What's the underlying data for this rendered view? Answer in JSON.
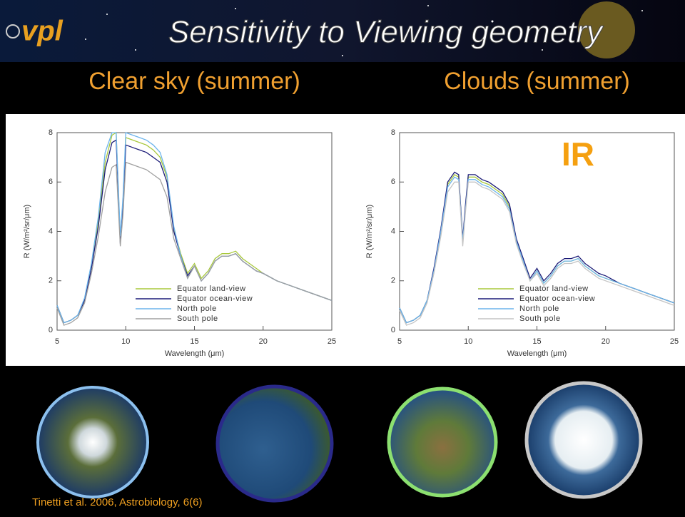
{
  "slide": {
    "logo": "vpl",
    "title": "Sensitivity to Viewing geometry",
    "citation": "Tinetti et al. 2006, Astrobiology, 6(6)"
  },
  "chart_data": [
    {
      "type": "line",
      "title": "Clear sky (summer)",
      "xlabel": "Wavelength (μm)",
      "ylabel": "R (W/m²/sr/μm)",
      "xlim": [
        5,
        25
      ],
      "ylim": [
        0,
        8
      ],
      "xticks": [
        5,
        10,
        15,
        20,
        25
      ],
      "yticks": [
        0,
        2,
        4,
        6,
        8
      ],
      "x": [
        5,
        5.5,
        6,
        6.5,
        7,
        7.5,
        8,
        8.5,
        9,
        9.3,
        9.6,
        9.8,
        10,
        10.5,
        11,
        11.5,
        12,
        12.5,
        13,
        13.5,
        14,
        14.5,
        15,
        15.5,
        16,
        16.5,
        17,
        17.5,
        18,
        18.5,
        19,
        19.5,
        20,
        21,
        22,
        23,
        24,
        25
      ],
      "series": [
        {
          "name": "Equator land-view",
          "color": "#a8c83c",
          "values": [
            1.0,
            0.3,
            0.4,
            0.6,
            1.2,
            2.6,
            4.4,
            6.8,
            7.9,
            8.0,
            3.6,
            5.2,
            7.8,
            7.7,
            7.6,
            7.5,
            7.3,
            7.0,
            6.2,
            4.1,
            3.1,
            2.3,
            2.7,
            2.1,
            2.4,
            2.9,
            3.1,
            3.1,
            3.2,
            2.9,
            2.7,
            2.5,
            2.3,
            2.0,
            1.8,
            1.6,
            1.4,
            1.2
          ]
        },
        {
          "name": "Equator ocean-view",
          "color": "#1c1c78",
          "values": [
            1.0,
            0.3,
            0.4,
            0.6,
            1.2,
            2.5,
            4.2,
            6.5,
            7.6,
            7.7,
            3.5,
            5.0,
            7.5,
            7.4,
            7.3,
            7.2,
            7.0,
            6.8,
            6.0,
            4.0,
            3.0,
            2.2,
            2.6,
            2.0,
            2.3,
            2.8,
            3.0,
            3.0,
            3.1,
            2.8,
            2.6,
            2.4,
            2.3,
            2.0,
            1.8,
            1.6,
            1.4,
            1.2
          ]
        },
        {
          "name": "North pole",
          "color": "#6cb4ec",
          "values": [
            1.0,
            0.3,
            0.4,
            0.6,
            1.3,
            2.7,
            4.6,
            7.2,
            8.0,
            8.0,
            3.8,
            5.4,
            8.0,
            7.9,
            7.8,
            7.7,
            7.5,
            7.2,
            6.3,
            4.2,
            3.0,
            2.1,
            2.6,
            2.0,
            2.3,
            2.8,
            3.0,
            3.0,
            3.1,
            2.8,
            2.6,
            2.4,
            2.3,
            2.0,
            1.8,
            1.6,
            1.4,
            1.2
          ]
        },
        {
          "name": "South pole",
          "color": "#a0a0a0",
          "values": [
            0.9,
            0.2,
            0.3,
            0.5,
            1.1,
            2.3,
            3.8,
            5.6,
            6.6,
            6.7,
            3.4,
            4.7,
            6.8,
            6.7,
            6.6,
            6.5,
            6.3,
            6.1,
            5.4,
            3.7,
            2.9,
            2.1,
            2.6,
            2.0,
            2.3,
            2.8,
            3.0,
            3.0,
            3.1,
            2.8,
            2.6,
            2.4,
            2.3,
            2.0,
            1.8,
            1.6,
            1.4,
            1.2
          ]
        }
      ]
    },
    {
      "type": "line",
      "title": "Clouds (summer)",
      "xlabel": "Wavelength (μm)",
      "ylabel": "R (W/m²/sr/μm)",
      "xlim": [
        5,
        25
      ],
      "ylim": [
        0,
        8
      ],
      "xticks": [
        5,
        10,
        15,
        20,
        25
      ],
      "yticks": [
        0,
        2,
        4,
        6,
        8
      ],
      "annotations": [
        {
          "text": "IR"
        }
      ],
      "x": [
        5,
        5.5,
        6,
        6.5,
        7,
        7.5,
        8,
        8.5,
        9,
        9.3,
        9.6,
        9.8,
        10,
        10.5,
        11,
        11.5,
        12,
        12.5,
        13,
        13.5,
        14,
        14.5,
        15,
        15.5,
        16,
        16.5,
        17,
        17.5,
        18,
        18.5,
        19,
        19.5,
        20,
        21,
        22,
        23,
        24,
        25
      ],
      "series": [
        {
          "name": "Equator land-view",
          "color": "#a8c83c",
          "values": [
            0.9,
            0.3,
            0.4,
            0.6,
            1.2,
            2.4,
            4.0,
            5.9,
            6.3,
            6.2,
            3.6,
            5.0,
            6.2,
            6.2,
            6.0,
            5.9,
            5.7,
            5.5,
            5.0,
            3.6,
            2.8,
            2.0,
            2.4,
            1.9,
            2.2,
            2.6,
            2.8,
            2.8,
            2.9,
            2.6,
            2.4,
            2.2,
            2.1,
            1.9,
            1.7,
            1.5,
            1.3,
            1.1
          ]
        },
        {
          "name": "Equator ocean-view",
          "color": "#1c1c78",
          "values": [
            0.9,
            0.3,
            0.4,
            0.6,
            1.2,
            2.5,
            4.1,
            6.0,
            6.4,
            6.3,
            3.7,
            5.1,
            6.3,
            6.3,
            6.1,
            6.0,
            5.8,
            5.6,
            5.1,
            3.7,
            2.9,
            2.1,
            2.5,
            2.0,
            2.3,
            2.7,
            2.9,
            2.9,
            3.0,
            2.7,
            2.5,
            2.3,
            2.2,
            1.9,
            1.7,
            1.5,
            1.3,
            1.1
          ]
        },
        {
          "name": "North pole",
          "color": "#6cb4ec",
          "values": [
            0.9,
            0.3,
            0.4,
            0.6,
            1.2,
            2.4,
            4.0,
            5.8,
            6.2,
            6.1,
            3.6,
            4.9,
            6.1,
            6.1,
            5.9,
            5.8,
            5.6,
            5.4,
            4.9,
            3.6,
            2.8,
            2.0,
            2.4,
            1.9,
            2.2,
            2.6,
            2.8,
            2.8,
            2.9,
            2.6,
            2.4,
            2.2,
            2.1,
            1.9,
            1.7,
            1.5,
            1.3,
            1.1
          ]
        },
        {
          "name": "South pole",
          "color": "#c4c4c4",
          "values": [
            0.8,
            0.2,
            0.3,
            0.5,
            1.1,
            2.3,
            3.8,
            5.6,
            6.0,
            6.0,
            3.4,
            4.8,
            6.0,
            6.0,
            5.8,
            5.7,
            5.5,
            5.3,
            4.8,
            3.5,
            2.7,
            2.0,
            2.3,
            1.8,
            2.1,
            2.5,
            2.7,
            2.7,
            2.8,
            2.5,
            2.3,
            2.1,
            2.0,
            1.8,
            1.6,
            1.4,
            1.2,
            1.0
          ]
        }
      ]
    }
  ]
}
